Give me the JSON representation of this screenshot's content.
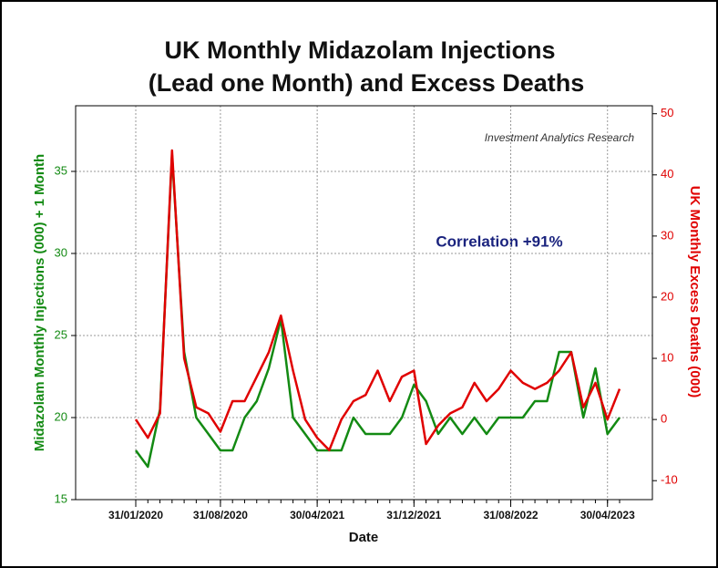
{
  "chart_data": {
    "type": "line",
    "title": "UK Monthly Midazolam Injections",
    "subtitle": "(Lead one Month) and Excess Deaths",
    "x_label": "Date",
    "y_label": "Midazolam Monthly Injections (000) + 1 Month",
    "y2_label": "UK Monthly Excess Deaths (000)",
    "annotations": [
      "Investment Analytics Research",
      "Correlation +91%"
    ],
    "categories": [
      "31/01/2020",
      null,
      null,
      null,
      null,
      null,
      null,
      "31/08/2020",
      null,
      null,
      null,
      null,
      null,
      null,
      null,
      "30/04/2021",
      null,
      null,
      null,
      null,
      null,
      null,
      null,
      "31/12/2021",
      null,
      null,
      null,
      null,
      null,
      null,
      null,
      "31/08/2022",
      null,
      null,
      null,
      null,
      null,
      null,
      null,
      "30/04/2023",
      null
    ],
    "series": [
      {
        "name": "Midazolam Monthly Injections (000) + 1 Month",
        "color": "#138a13",
        "values": [
          18,
          17,
          20.5,
          36,
          24,
          20,
          19,
          18,
          18,
          20,
          21,
          23,
          26,
          20,
          19,
          18,
          18,
          18,
          20,
          19,
          19,
          19,
          20,
          22,
          21,
          19,
          20,
          19,
          20,
          19,
          20,
          20,
          20,
          21,
          21,
          24,
          24,
          20,
          23,
          19,
          20
        ]
      },
      {
        "name": "UK Monthly Excess Deaths (000)",
        "color": "#e00000",
        "axis": "y2",
        "values": [
          0,
          -3,
          1,
          44,
          10,
          2,
          1,
          -2,
          3,
          3,
          7,
          11,
          17,
          8,
          0,
          -3,
          -5,
          0,
          3,
          4,
          8,
          3,
          7,
          8,
          -4,
          -1,
          1,
          2,
          6,
          3,
          5,
          8,
          6,
          5,
          6,
          8,
          11,
          2,
          6,
          0,
          5
        ]
      }
    ],
    "ylim": [
      15,
      39
    ],
    "yticks": [
      15,
      20,
      25,
      30,
      35
    ],
    "y2lim": [
      -13.1,
      51.3
    ],
    "y2ticks": [
      -10,
      0,
      10,
      20,
      30,
      40,
      50
    ],
    "grid": true
  }
}
